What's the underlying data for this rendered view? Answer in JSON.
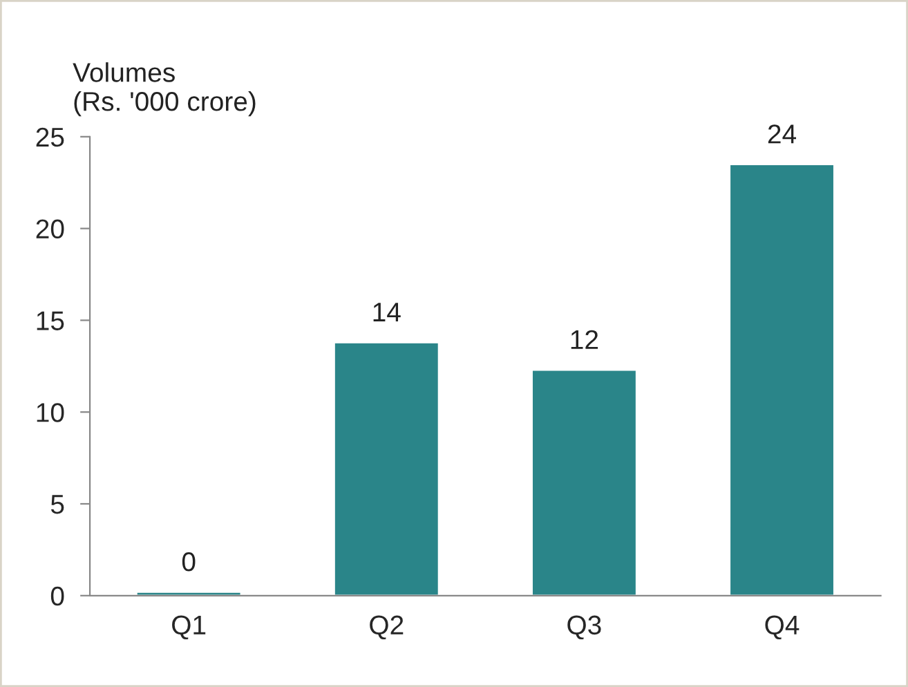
{
  "chart_data": {
    "type": "bar",
    "ylabel": "Volumes\n(Rs. '000 crore)",
    "categories": [
      "Q1",
      "Q2",
      "Q3",
      "Q4"
    ],
    "values": [
      0.2,
      13.8,
      12.3,
      23.5
    ],
    "value_labels": [
      "0",
      "14",
      "12",
      "24"
    ],
    "color": "#2a8589",
    "ylim": [
      0,
      25
    ],
    "yticks": [
      0,
      5,
      10,
      15,
      20,
      25
    ],
    "grid": false,
    "legend": false
  }
}
